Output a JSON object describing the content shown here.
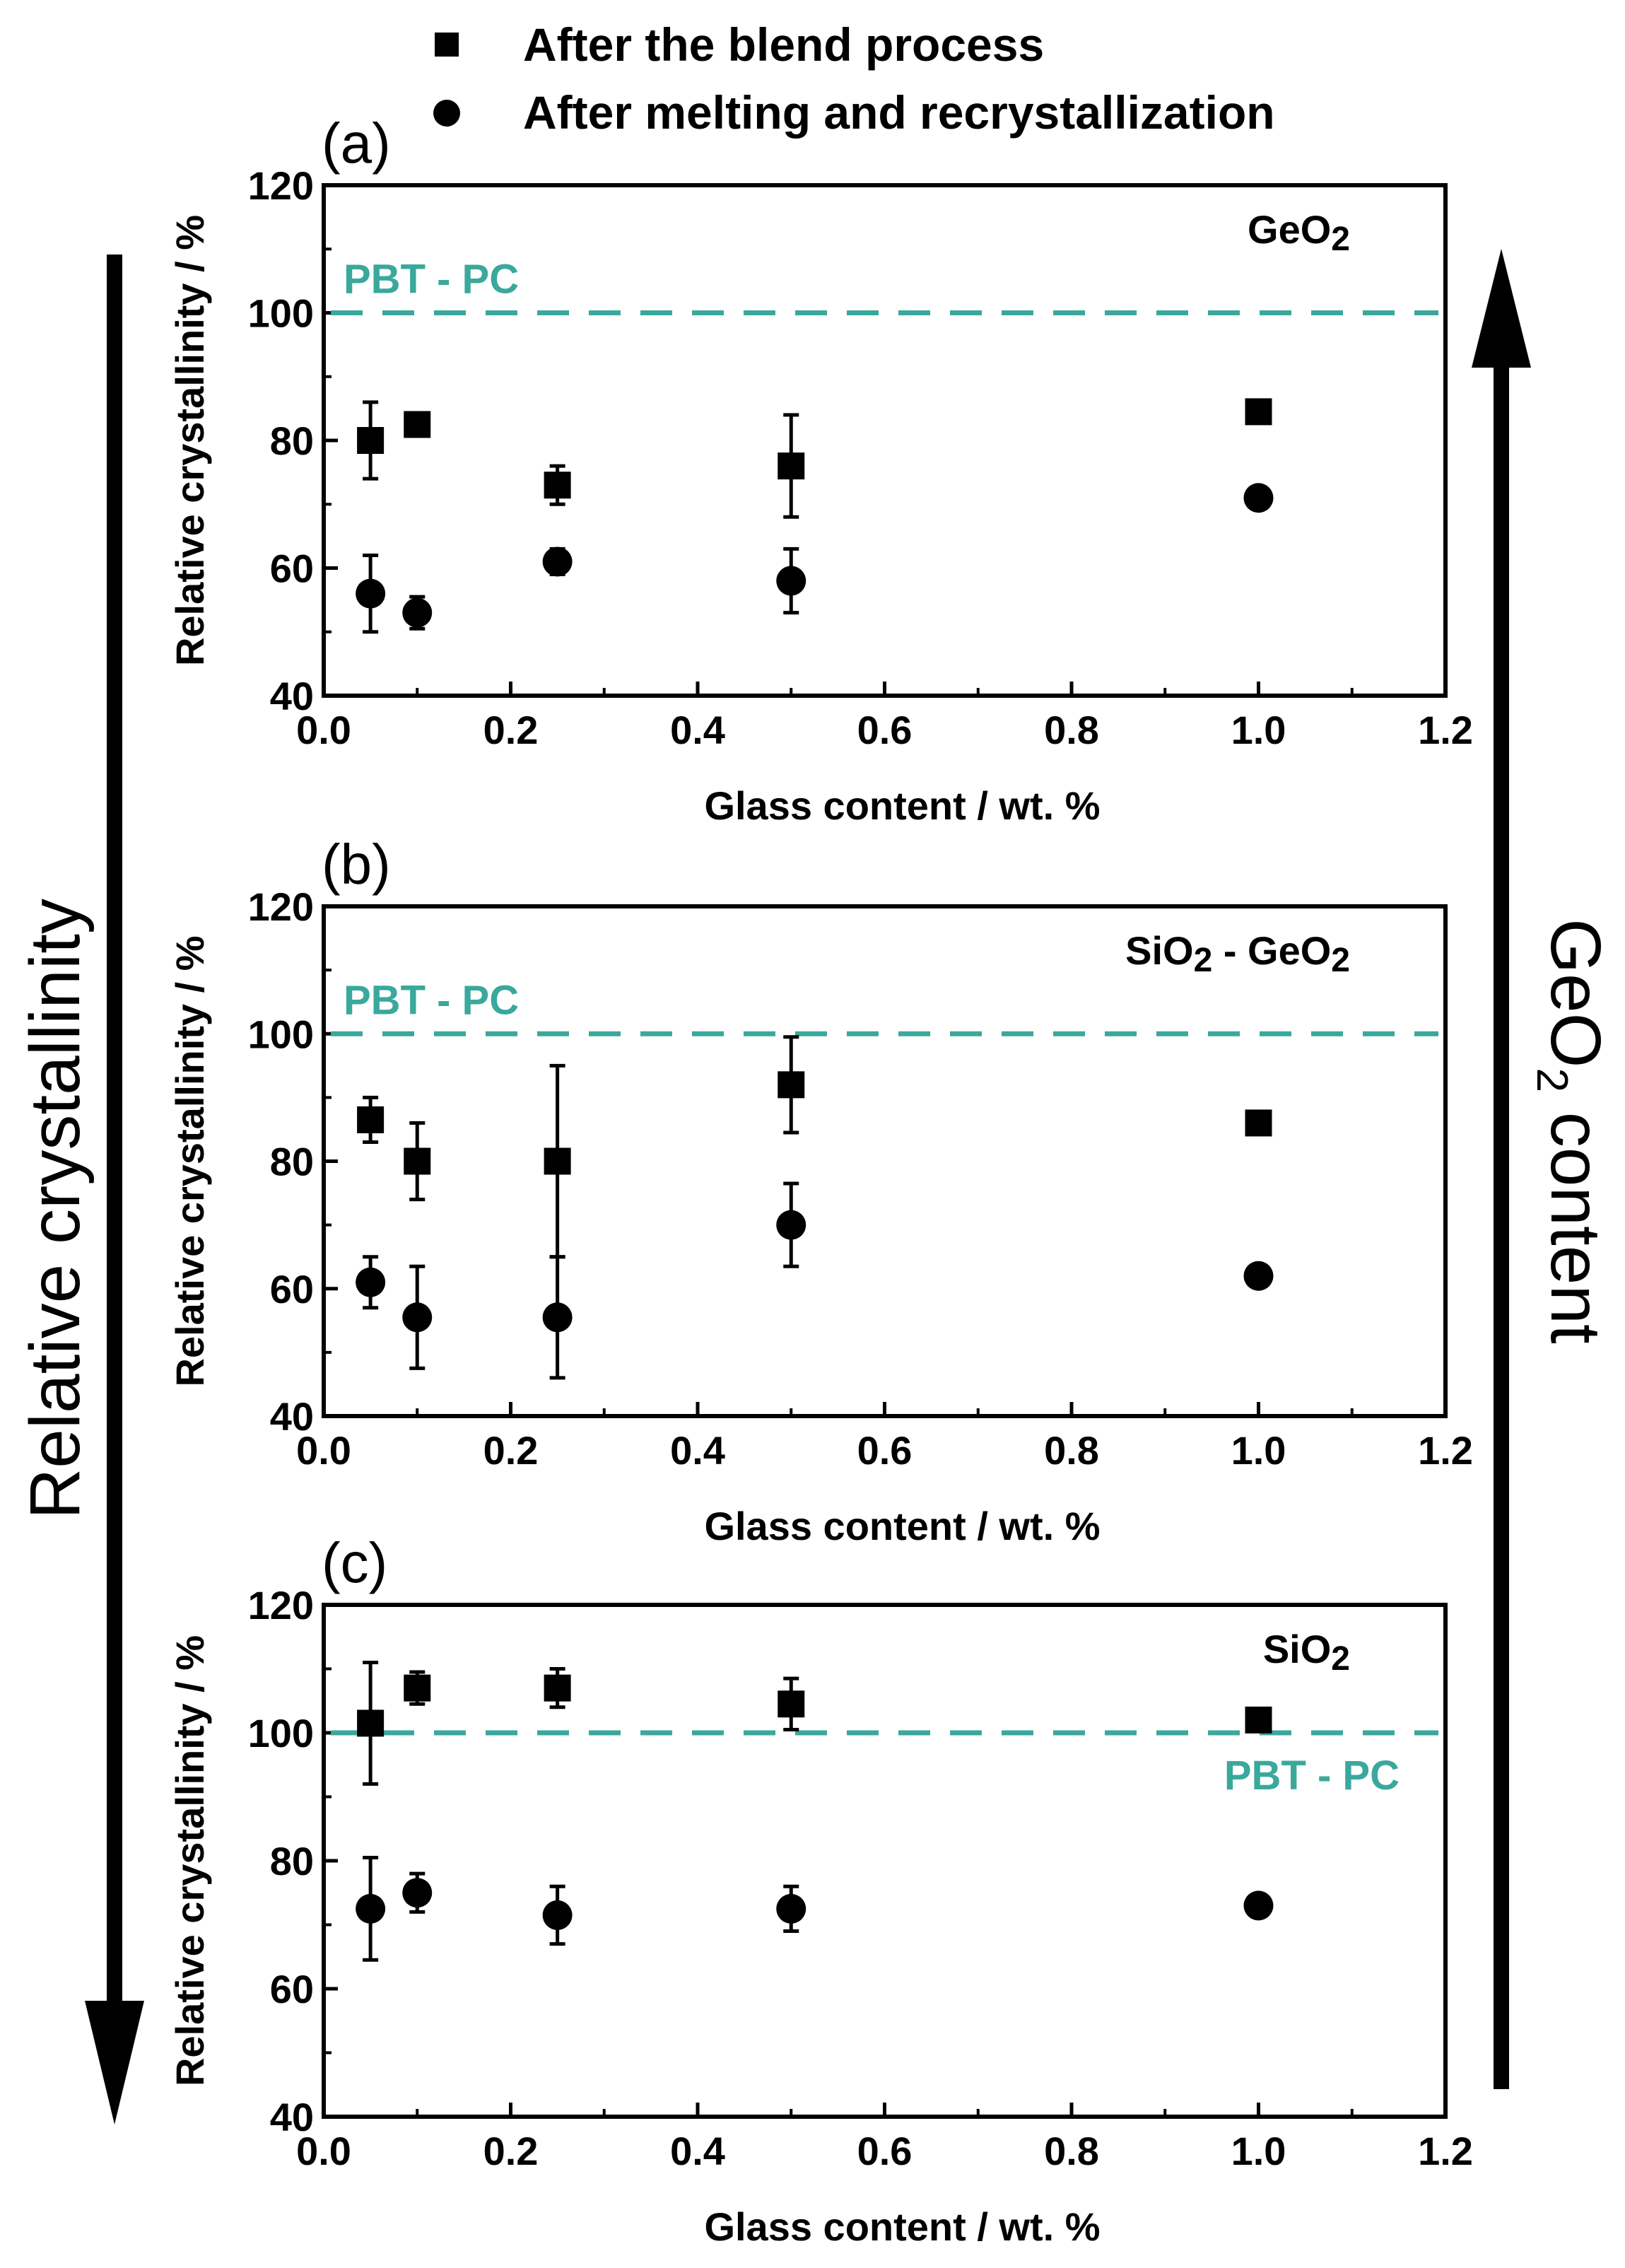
{
  "legend": {
    "series_blend": "After the blend process",
    "series_melt": "After melting and recrystallization"
  },
  "side_labels": {
    "left": "Relative crystallinity",
    "right_prefix": "GeO",
    "right_sub": "2",
    "right_suffix": " content"
  },
  "colors": {
    "reference_line": "#3aa89c",
    "marker": "#000000"
  },
  "chart_data": [
    {
      "type": "scatter",
      "panel_label": "(a)",
      "material": "GeO2",
      "xlabel": "Glass content / wt. %",
      "ylabel": "Relative crystallinity / %",
      "xlim": [
        0.0,
        1.2
      ],
      "ylim": [
        40,
        120
      ],
      "xticks": [
        "0.0",
        "0.2",
        "0.4",
        "0.6",
        "0.8",
        "1.0",
        "1.2"
      ],
      "yticks": [
        "40",
        "60",
        "80",
        "100",
        "120"
      ],
      "reference": {
        "label": "PBT - PC",
        "value": 100,
        "label_position": "top-left"
      },
      "series": [
        {
          "name": "After the blend process",
          "marker": "square",
          "x": [
            0.05,
            0.1,
            0.25,
            0.5,
            1.0
          ],
          "y": [
            80,
            82.5,
            73,
            76,
            84.5
          ],
          "err": [
            6,
            1,
            3,
            8,
            0
          ]
        },
        {
          "name": "After melting and recrystallization",
          "marker": "circle",
          "x": [
            0.05,
            0.1,
            0.25,
            0.5,
            1.0
          ],
          "y": [
            56,
            53,
            61,
            58,
            71
          ],
          "err": [
            6,
            2.5,
            2,
            5,
            0
          ]
        }
      ]
    },
    {
      "type": "scatter",
      "panel_label": "(b)",
      "material": "SiO2 - GeO2",
      "xlabel": "Glass content / wt. %",
      "ylabel": "Relative crystallinity / %",
      "xlim": [
        0.0,
        1.2
      ],
      "ylim": [
        40,
        120
      ],
      "xticks": [
        "0.0",
        "0.2",
        "0.4",
        "0.6",
        "0.8",
        "1.0",
        "1.2"
      ],
      "yticks": [
        "40",
        "60",
        "80",
        "100",
        "120"
      ],
      "reference": {
        "label": "PBT - PC",
        "value": 100,
        "label_position": "top-left"
      },
      "series": [
        {
          "name": "After the blend process",
          "marker": "square",
          "x": [
            0.05,
            0.1,
            0.25,
            0.5,
            1.0
          ],
          "y": [
            86.5,
            80,
            80,
            92,
            86
          ],
          "err": [
            3.5,
            6,
            15,
            7.5,
            0
          ]
        },
        {
          "name": "After melting and recrystallization",
          "marker": "circle",
          "x": [
            0.05,
            0.1,
            0.25,
            0.5,
            1.0
          ],
          "y": [
            61,
            55.5,
            55.5,
            70,
            62
          ],
          "err": [
            4,
            8,
            9.5,
            6.5,
            0
          ]
        }
      ]
    },
    {
      "type": "scatter",
      "panel_label": "(c)",
      "material": "SiO2",
      "xlabel": "Glass content / wt. %",
      "ylabel": "Relative crystallinity / %",
      "xlim": [
        0.0,
        1.2
      ],
      "ylim": [
        40,
        120
      ],
      "xticks": [
        "0.0",
        "0.2",
        "0.4",
        "0.6",
        "0.8",
        "1.0",
        "1.2"
      ],
      "yticks": [
        "40",
        "60",
        "80",
        "100",
        "120"
      ],
      "reference": {
        "label": "PBT - PC",
        "value": 100,
        "label_position": "bottom-right"
      },
      "series": [
        {
          "name": "After the blend process",
          "marker": "square",
          "x": [
            0.05,
            0.1,
            0.25,
            0.5,
            1.0
          ],
          "y": [
            101.5,
            107,
            107,
            104.5,
            102
          ],
          "err": [
            9.5,
            2.5,
            3,
            4,
            0
          ]
        },
        {
          "name": "After melting and recrystallization",
          "marker": "circle",
          "x": [
            0.05,
            0.1,
            0.25,
            0.5,
            1.0
          ],
          "y": [
            72.5,
            75,
            71.5,
            72.5,
            73
          ],
          "err": [
            8,
            3,
            4.5,
            3.5,
            0
          ]
        }
      ]
    }
  ]
}
